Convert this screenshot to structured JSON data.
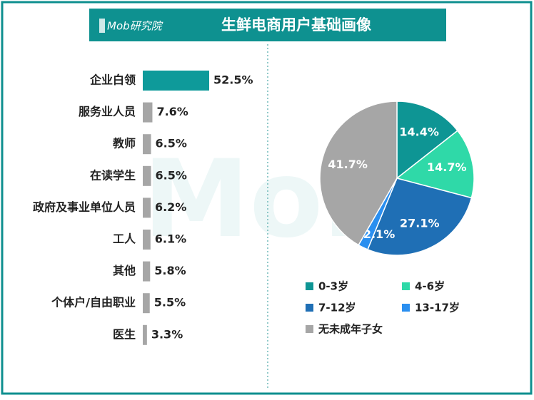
{
  "header": {
    "logo": "Mob研究院",
    "title": "生鲜电商用户基础画像",
    "watermark": "Mob"
  },
  "chart_data": [
    {
      "type": "hbar",
      "categories": [
        "企业白领",
        "服务业人员",
        "教师",
        "在读学生",
        "政府及事业单位人员",
        "工人",
        "其他",
        "个体户/自由职业",
        "医生"
      ],
      "values": [
        52.5,
        7.6,
        6.5,
        6.5,
        6.2,
        6.1,
        5.8,
        5.5,
        3.3
      ],
      "value_labels": [
        "52.5%",
        "7.6%",
        "6.5%",
        "6.5%",
        "6.2%",
        "6.1%",
        "5.8%",
        "5.5%",
        "3.3%"
      ],
      "colors": [
        "#0e9a9a",
        "#a6a6a6",
        "#a6a6a6",
        "#a6a6a6",
        "#a6a6a6",
        "#a6a6a6",
        "#a6a6a6",
        "#a6a6a6",
        "#a6a6a6"
      ]
    },
    {
      "type": "pie",
      "categories": [
        "0-3岁",
        "4-6岁",
        "7-12岁",
        "13-17岁",
        "无未成年子女"
      ],
      "values": [
        14.4,
        14.7,
        27.1,
        2.1,
        41.7
      ],
      "value_labels": [
        "14.4%",
        "14.7%",
        "27.1%",
        "2.1%",
        "41.7%"
      ],
      "colors": [
        "#0e9594",
        "#2fd9a8",
        "#1f6fb5",
        "#2a8ff0",
        "#a6a6a6"
      ]
    }
  ]
}
